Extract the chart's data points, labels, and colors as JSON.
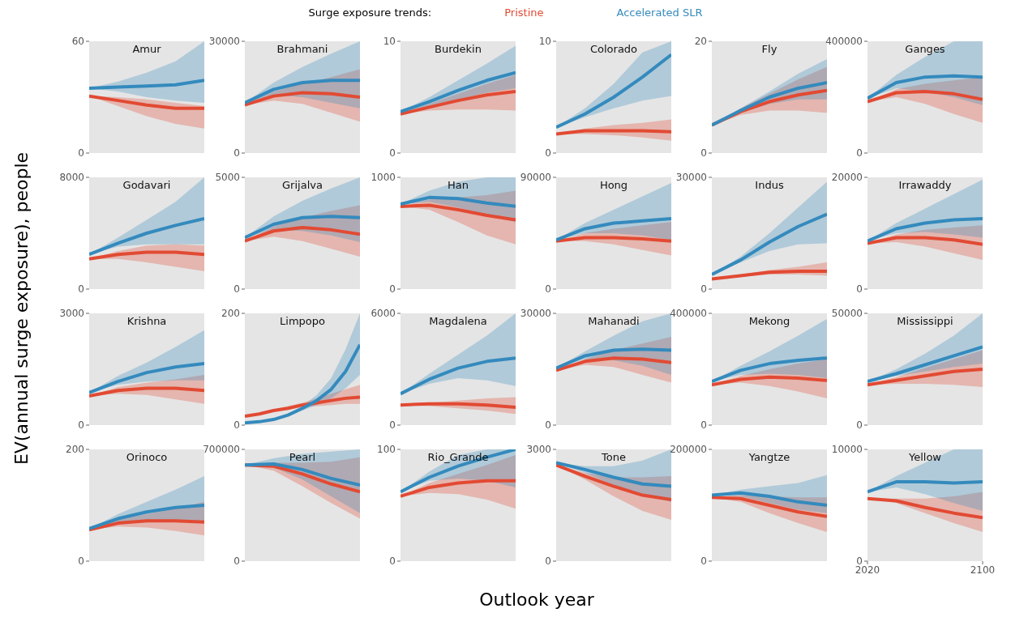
{
  "chart_data": [
    {
      "type": "line",
      "title": "Amur",
      "categories": [
        null,
        null,
        null,
        null,
        null
      ],
      "ylim": [
        0,
        60
      ],
      "yticks": [
        0,
        60
      ],
      "tick_labels": "y",
      "series": [
        {
          "color": "#e24a33",
          "values": [
            30.6,
            28.2,
            25.8,
            24,
            24
          ],
          "lower": [
            30.6,
            25.2,
            19.8,
            15.6,
            13.2
          ],
          "upper": [
            30.6,
            30,
            28.8,
            27,
            25.2
          ]
        },
        {
          "color": "#348abd",
          "values": [
            34.8,
            35.4,
            36,
            36.6,
            39
          ],
          "lower": [
            34.8,
            33,
            30,
            28.2,
            27
          ],
          "upper": [
            34.8,
            38.4,
            43.2,
            49.2,
            60
          ]
        }
      ]
    },
    {
      "type": "line",
      "title": "Brahmani",
      "categories": [
        null,
        null,
        null,
        null,
        null
      ],
      "ylim": [
        0,
        30000
      ],
      "yticks": [
        0,
        30000
      ],
      "tick_labels": "y",
      "series": [
        {
          "color": "#e24a33",
          "values": [
            12900,
            15300,
            16200,
            15900,
            15000
          ],
          "lower": [
            12900,
            14100,
            13200,
            10800,
            8400
          ],
          "upper": [
            12900,
            16500,
            18600,
            20400,
            22500
          ]
        },
        {
          "color": "#348abd",
          "values": [
            13500,
            17100,
            18900,
            19500,
            19500
          ],
          "lower": [
            13500,
            15600,
            15000,
            13500,
            12000
          ],
          "upper": [
            13500,
            18900,
            23100,
            26700,
            30000
          ]
        }
      ]
    },
    {
      "type": "line",
      "title": "Burdekin",
      "categories": [
        null,
        null,
        null,
        null,
        null
      ],
      "ylim": [
        0,
        10
      ],
      "yticks": [
        0,
        10
      ],
      "tick_labels": "y",
      "series": [
        {
          "color": "#e24a33",
          "values": [
            3.5,
            4.1,
            4.7,
            5.2,
            5.5
          ],
          "lower": [
            3.5,
            3.8,
            3.9,
            3.9,
            3.8
          ],
          "upper": [
            3.5,
            4.4,
            5.3,
            6.2,
            7.0
          ]
        },
        {
          "color": "#348abd",
          "values": [
            3.7,
            4.6,
            5.6,
            6.5,
            7.2
          ],
          "lower": [
            3.7,
            4.2,
            4.8,
            5.4,
            5.8
          ],
          "upper": [
            3.7,
            5.0,
            6.5,
            8.0,
            9.6
          ]
        }
      ]
    },
    {
      "type": "line",
      "title": "Colorado",
      "categories": [
        null,
        null,
        null,
        null,
        null
      ],
      "ylim": [
        0,
        10
      ],
      "yticks": [
        0,
        10
      ],
      "tick_labels": "y",
      "series": [
        {
          "color": "#e24a33",
          "values": [
            1.7,
            2.0,
            2.0,
            2.0,
            1.9
          ],
          "lower": [
            1.7,
            1.7,
            1.6,
            1.4,
            1.1
          ],
          "upper": [
            1.7,
            2.2,
            2.5,
            2.7,
            3.0
          ]
        },
        {
          "color": "#348abd",
          "values": [
            2.3,
            3.5,
            5.0,
            6.8,
            8.8
          ],
          "lower": [
            2.3,
            3.2,
            4.0,
            4.7,
            5.1
          ],
          "upper": [
            2.3,
            4.0,
            6.2,
            9.0,
            10
          ]
        }
      ]
    },
    {
      "type": "line",
      "title": "Fly",
      "categories": [
        null,
        null,
        null,
        null,
        null
      ],
      "ylim": [
        0,
        20
      ],
      "yticks": [
        0,
        20
      ],
      "tick_labels": "y",
      "series": [
        {
          "color": "#e24a33",
          "values": [
            5,
            7.4,
            9.2,
            10.4,
            11.2
          ],
          "lower": [
            5,
            6.8,
            7.6,
            7.6,
            7.2
          ],
          "upper": [
            5,
            8,
            10.6,
            13.2,
            15.4
          ]
        },
        {
          "color": "#348abd",
          "values": [
            5,
            7.6,
            10,
            11.6,
            12.6
          ],
          "lower": [
            5,
            7.2,
            8.8,
            9.6,
            9.6
          ],
          "upper": [
            5,
            8,
            11,
            14.2,
            16.8
          ]
        }
      ]
    },
    {
      "type": "line",
      "title": "Ganges",
      "x": [
        2020,
        2040,
        2060,
        2080,
        2100
      ],
      "xlim": [
        2020,
        2100
      ],
      "ylim": [
        0,
        400000
      ],
      "yticks": [
        0,
        400000
      ],
      "tick_labels": "y",
      "series": [
        {
          "color": "#e24a33",
          "values": [
            184000,
            216000,
            220000,
            212000,
            192000
          ],
          "lower": [
            184000,
            200000,
            176000,
            140000,
            108000
          ],
          "upper": [
            184000,
            228000,
            248000,
            260000,
            272000
          ]
        },
        {
          "color": "#348abd",
          "values": [
            196000,
            252000,
            272000,
            276000,
            272000
          ],
          "lower": [
            196000,
            232000,
            220000,
            200000,
            172000
          ],
          "upper": [
            196000,
            280000,
            344000,
            400000,
            400000
          ]
        }
      ]
    },
    {
      "type": "line",
      "title": "Godavari",
      "categories": [
        null,
        null,
        null,
        null,
        null
      ],
      "ylim": [
        0,
        8000
      ],
      "yticks": [
        0,
        8000
      ],
      "tick_labels": "y",
      "series": [
        {
          "color": "#e24a33",
          "values": [
            2160,
            2480,
            2640,
            2640,
            2480
          ],
          "lower": [
            2160,
            2160,
            1920,
            1600,
            1280
          ],
          "upper": [
            2160,
            2720,
            3120,
            3200,
            3120
          ]
        },
        {
          "color": "#348abd",
          "values": [
            2480,
            3280,
            4000,
            4560,
            5040
          ],
          "lower": [
            2480,
            3040,
            3200,
            3200,
            3200
          ],
          "upper": [
            2480,
            3680,
            4960,
            6240,
            8000
          ]
        }
      ]
    },
    {
      "type": "line",
      "title": "Grijalva",
      "categories": [
        null,
        null,
        null,
        null,
        null
      ],
      "ylim": [
        0,
        5000
      ],
      "yticks": [
        0,
        5000
      ],
      "tick_labels": "y",
      "series": [
        {
          "color": "#e24a33",
          "values": [
            2150,
            2600,
            2750,
            2650,
            2450
          ],
          "lower": [
            2150,
            2350,
            2150,
            1800,
            1450
          ],
          "upper": [
            2150,
            2800,
            3200,
            3500,
            3750
          ]
        },
        {
          "color": "#348abd",
          "values": [
            2300,
            2900,
            3200,
            3250,
            3200
          ],
          "lower": [
            2300,
            2650,
            2600,
            2400,
            2100
          ],
          "upper": [
            2300,
            3250,
            3950,
            4500,
            5000
          ]
        }
      ]
    },
    {
      "type": "line",
      "title": "Han",
      "categories": [
        null,
        null,
        null,
        null,
        null
      ],
      "ylim": [
        0,
        1000
      ],
      "yticks": [
        0,
        1000
      ],
      "tick_labels": "y",
      "series": [
        {
          "color": "#e24a33",
          "values": [
            740,
            750,
            710,
            660,
            620
          ],
          "lower": [
            740,
            710,
            600,
            480,
            400
          ],
          "upper": [
            740,
            800,
            820,
            840,
            880
          ]
        },
        {
          "color": "#348abd",
          "values": [
            760,
            820,
            810,
            770,
            740
          ],
          "lower": [
            760,
            780,
            730,
            660,
            600
          ],
          "upper": [
            760,
            880,
            960,
            1000,
            1000
          ]
        }
      ]
    },
    {
      "type": "line",
      "title": "Hong",
      "categories": [
        null,
        null,
        null,
        null,
        null
      ],
      "ylim": [
        0,
        90000
      ],
      "yticks": [
        0,
        90000
      ],
      "tick_labels": "y",
      "series": [
        {
          "color": "#e24a33",
          "values": [
            38700,
            41400,
            41400,
            40500,
            38700
          ],
          "lower": [
            38700,
            38700,
            36000,
            31500,
            27000
          ],
          "upper": [
            38700,
            45000,
            48600,
            51300,
            54000
          ]
        },
        {
          "color": "#348abd",
          "values": [
            39600,
            48600,
            53100,
            54900,
            56700
          ],
          "lower": [
            39600,
            45000,
            45000,
            43200,
            39600
          ],
          "upper": [
            39600,
            53100,
            63900,
            74700,
            85500
          ]
        }
      ]
    },
    {
      "type": "line",
      "title": "Indus",
      "categories": [
        null,
        null,
        null,
        null,
        null
      ],
      "ylim": [
        0,
        30000
      ],
      "yticks": [
        0,
        30000
      ],
      "tick_labels": "y",
      "series": [
        {
          "color": "#e24a33",
          "values": [
            2700,
            3600,
            4500,
            4800,
            4800
          ],
          "lower": [
            2700,
            3300,
            3900,
            3900,
            3600
          ],
          "upper": [
            2700,
            3900,
            5100,
            6000,
            7200
          ]
        },
        {
          "color": "#348abd",
          "values": [
            3900,
            7800,
            12600,
            16800,
            20100
          ],
          "lower": [
            3900,
            7200,
            10200,
            12000,
            12300
          ],
          "upper": [
            3900,
            8700,
            15000,
            21900,
            28800
          ]
        }
      ]
    },
    {
      "type": "line",
      "title": "Irrawaddy",
      "x": [
        2020,
        2040,
        2060,
        2080,
        2100
      ],
      "xlim": [
        2020,
        2100
      ],
      "ylim": [
        0,
        20000
      ],
      "yticks": [
        0,
        20000
      ],
      "tick_labels": "y",
      "series": [
        {
          "color": "#e24a33",
          "values": [
            8200,
            9200,
            9200,
            8800,
            8000
          ],
          "lower": [
            8200,
            8400,
            7600,
            6400,
            5200
          ],
          "upper": [
            8200,
            9800,
            10600,
            11000,
            11400
          ]
        },
        {
          "color": "#348abd",
          "values": [
            8600,
            10800,
            11800,
            12400,
            12600
          ],
          "lower": [
            8600,
            10000,
            10200,
            9800,
            9200
          ],
          "upper": [
            8600,
            11800,
            14400,
            17000,
            19600
          ]
        }
      ]
    },
    {
      "type": "line",
      "title": "Krishna",
      "categories": [
        null,
        null,
        null,
        null,
        null
      ],
      "ylim": [
        0,
        3000
      ],
      "yticks": [
        0,
        3000
      ],
      "tick_labels": "y",
      "series": [
        {
          "color": "#e24a33",
          "values": [
            780,
            930,
            990,
            990,
            930
          ],
          "lower": [
            780,
            840,
            810,
            690,
            570
          ],
          "upper": [
            780,
            1020,
            1140,
            1230,
            1350
          ]
        },
        {
          "color": "#348abd",
          "values": [
            870,
            1170,
            1410,
            1560,
            1650
          ],
          "lower": [
            870,
            1080,
            1170,
            1200,
            1200
          ],
          "upper": [
            870,
            1320,
            1680,
            2100,
            2550
          ]
        }
      ]
    },
    {
      "type": "line",
      "title": "Limpopo",
      "categories": [
        null,
        null,
        null,
        null,
        null,
        null,
        null,
        null,
        null
      ],
      "ylim": [
        0,
        200
      ],
      "yticks": [
        0,
        200
      ],
      "tick_labels": "y",
      "series": [
        {
          "color": "#e24a33",
          "values": [
            16,
            20,
            26,
            30,
            36,
            40,
            44,
            48,
            50
          ],
          "lower": [
            16,
            20,
            24,
            28,
            32,
            34,
            36,
            38,
            38
          ],
          "upper": [
            16,
            22,
            28,
            34,
            40,
            48,
            56,
            64,
            72
          ]
        },
        {
          "color": "#348abd",
          "values": [
            4,
            6,
            10,
            18,
            30,
            44,
            64,
            96,
            144
          ],
          "lower": [
            4,
            6,
            8,
            16,
            26,
            36,
            48,
            66,
            90
          ],
          "upper": [
            4,
            6,
            12,
            20,
            34,
            54,
            84,
            136,
            200
          ]
        }
      ]
    },
    {
      "type": "line",
      "title": "Magdalena",
      "categories": [
        null,
        null,
        null,
        null,
        null
      ],
      "ylim": [
        0,
        6000
      ],
      "yticks": [
        0,
        6000
      ],
      "tick_labels": "y",
      "series": [
        {
          "color": "#e24a33",
          "values": [
            1080,
            1140,
            1140,
            1080,
            960
          ],
          "lower": [
            1080,
            1020,
            900,
            780,
            600
          ],
          "upper": [
            1080,
            1200,
            1320,
            1440,
            1500
          ]
        },
        {
          "color": "#348abd",
          "values": [
            1680,
            2460,
            3060,
            3420,
            3600
          ],
          "lower": [
            1680,
            2220,
            2520,
            2400,
            2100
          ],
          "upper": [
            1680,
            2760,
            3780,
            4800,
            6000
          ]
        }
      ]
    },
    {
      "type": "line",
      "title": "Mahanadi",
      "categories": [
        null,
        null,
        null,
        null,
        null
      ],
      "ylim": [
        0,
        30000
      ],
      "yticks": [
        0,
        30000
      ],
      "tick_labels": "y",
      "series": [
        {
          "color": "#e24a33",
          "values": [
            14700,
            17100,
            18000,
            17700,
            16800
          ],
          "lower": [
            14700,
            16200,
            15600,
            13500,
            11400
          ],
          "upper": [
            14700,
            17700,
            20100,
            21900,
            23700
          ]
        },
        {
          "color": "#348abd",
          "values": [
            15300,
            18600,
            20100,
            20400,
            20100
          ],
          "lower": [
            15300,
            17700,
            17400,
            15900,
            13500
          ],
          "upper": [
            15300,
            19800,
            24000,
            27900,
            30000
          ]
        }
      ]
    },
    {
      "type": "line",
      "title": "Mekong",
      "categories": [
        null,
        null,
        null,
        null,
        null
      ],
      "ylim": [
        0,
        400000
      ],
      "yticks": [
        0,
        400000
      ],
      "tick_labels": "y",
      "series": [
        {
          "color": "#e24a33",
          "values": [
            144000,
            164000,
            172000,
            168000,
            160000
          ],
          "lower": [
            144000,
            152000,
            140000,
            120000,
            96000
          ],
          "upper": [
            144000,
            176000,
            200000,
            220000,
            236000
          ]
        },
        {
          "color": "#348abd",
          "values": [
            156000,
            196000,
            220000,
            232000,
            240000
          ],
          "lower": [
            156000,
            180000,
            184000,
            180000,
            168000
          ],
          "upper": [
            156000,
            212000,
            264000,
            320000,
            380000
          ]
        }
      ]
    },
    {
      "type": "line",
      "title": "Mississippi",
      "x": [
        2020,
        2040,
        2060,
        2080,
        2100
      ],
      "xlim": [
        2020,
        2100
      ],
      "ylim": [
        0,
        50000
      ],
      "yticks": [
        0,
        50000
      ],
      "tick_labels": "y",
      "series": [
        {
          "color": "#e24a33",
          "values": [
            18000,
            20000,
            22000,
            24000,
            25000
          ],
          "lower": [
            18000,
            18500,
            18500,
            18000,
            17000
          ],
          "upper": [
            18000,
            21500,
            25500,
            29500,
            33500
          ]
        },
        {
          "color": "#348abd",
          "values": [
            19500,
            23000,
            27000,
            31000,
            35000
          ],
          "lower": [
            19500,
            22000,
            24000,
            26000,
            27500
          ],
          "upper": [
            19500,
            25000,
            32000,
            40000,
            50000
          ]
        }
      ]
    },
    {
      "type": "line",
      "title": "Orinoco",
      "categories": [
        null,
        null,
        null,
        null,
        null
      ],
      "ylim": [
        0,
        200
      ],
      "yticks": [
        0,
        200
      ],
      "tick_labels": "y",
      "series": [
        {
          "color": "#e24a33",
          "values": [
            56,
            68,
            72,
            72,
            70
          ],
          "lower": [
            56,
            62,
            60,
            54,
            46
          ],
          "upper": [
            56,
            74,
            84,
            94,
            106
          ]
        },
        {
          "color": "#348abd",
          "values": [
            58,
            76,
            88,
            96,
            100
          ],
          "lower": [
            58,
            70,
            74,
            74,
            72
          ],
          "upper": [
            58,
            84,
            106,
            128,
            152
          ]
        }
      ]
    },
    {
      "type": "line",
      "title": "Pearl",
      "categories": [
        null,
        null,
        null,
        null,
        null
      ],
      "ylim": [
        0,
        700000
      ],
      "yticks": [
        0,
        700000
      ],
      "tick_labels": "y",
      "series": [
        {
          "color": "#e24a33",
          "values": [
            602000,
            595000,
            546000,
            483000,
            434000
          ],
          "lower": [
            602000,
            567000,
            469000,
            364000,
            266000
          ],
          "upper": [
            602000,
            616000,
            616000,
            623000,
            651000
          ]
        },
        {
          "color": "#348abd",
          "values": [
            602000,
            609000,
            574000,
            518000,
            476000
          ],
          "lower": [
            602000,
            588000,
            511000,
            406000,
            301000
          ],
          "upper": [
            602000,
            644000,
            672000,
            686000,
            700000
          ]
        }
      ]
    },
    {
      "type": "line",
      "title": "Rio_Grande",
      "categories": [
        null,
        null,
        null,
        null,
        null
      ],
      "ylim": [
        0,
        100
      ],
      "yticks": [
        0,
        100
      ],
      "tick_labels": "y",
      "series": [
        {
          "color": "#e24a33",
          "values": [
            58,
            66,
            70,
            72,
            72
          ],
          "lower": [
            58,
            61,
            60,
            55,
            47
          ],
          "upper": [
            58,
            70,
            78,
            86,
            95
          ]
        },
        {
          "color": "#348abd",
          "values": [
            62,
            75,
            85,
            93,
            100
          ],
          "lower": [
            62,
            72,
            74,
            72,
            66
          ],
          "upper": [
            62,
            80,
            95,
            100,
            100
          ]
        }
      ]
    },
    {
      "type": "line",
      "title": "Tone",
      "categories": [
        null,
        null,
        null,
        null,
        null
      ],
      "ylim": [
        0,
        3000
      ],
      "yticks": [
        0,
        3000
      ],
      "tick_labels": "y",
      "series": [
        {
          "color": "#e24a33",
          "values": [
            2580,
            2280,
            2010,
            1770,
            1650
          ],
          "lower": [
            2580,
            2190,
            1740,
            1350,
            1110
          ],
          "upper": [
            2580,
            2370,
            2250,
            2250,
            2280
          ]
        },
        {
          "color": "#348abd",
          "values": [
            2640,
            2460,
            2250,
            2070,
            2010
          ],
          "lower": [
            2640,
            2370,
            2040,
            1770,
            1590
          ],
          "upper": [
            2640,
            2550,
            2550,
            2700,
            3000
          ]
        }
      ]
    },
    {
      "type": "line",
      "title": "Yangtze",
      "categories": [
        null,
        null,
        null,
        null,
        null
      ],
      "ylim": [
        0,
        200000
      ],
      "yticks": [
        0,
        200000
      ],
      "tick_labels": "y",
      "series": [
        {
          "color": "#e24a33",
          "values": [
            114000,
            112000,
            100000,
            88000,
            80000
          ],
          "lower": [
            114000,
            106000,
            86000,
            68000,
            52000
          ],
          "upper": [
            114000,
            118000,
            116000,
            114000,
            114000
          ]
        },
        {
          "color": "#348abd",
          "values": [
            118000,
            122000,
            116000,
            106000,
            100000
          ],
          "lower": [
            118000,
            116000,
            104000,
            92000,
            86000
          ],
          "upper": [
            118000,
            128000,
            134000,
            140000,
            154000
          ]
        }
      ]
    },
    {
      "type": "line",
      "title": "Yellow",
      "x": [
        2020,
        2040,
        2060,
        2080,
        2100
      ],
      "xlim": [
        2020,
        2100
      ],
      "xticks": [
        2020,
        2100
      ],
      "ylim": [
        0,
        10000
      ],
      "yticks": [
        0,
        10000
      ],
      "series": [
        {
          "color": "#e24a33",
          "values": [
            5600,
            5400,
            4800,
            4300,
            3900
          ],
          "lower": [
            5600,
            5200,
            4300,
            3400,
            2600
          ],
          "upper": [
            5600,
            5600,
            5600,
            5800,
            6200
          ]
        },
        {
          "color": "#348abd",
          "values": [
            6200,
            7100,
            7100,
            7000,
            7100
          ],
          "lower": [
            6200,
            6600,
            6000,
            5200,
            4500
          ],
          "upper": [
            6200,
            7600,
            8800,
            10000,
            10000
          ]
        }
      ]
    },
    {
      "type": "other",
      "legend_title": "Surge exposure trends:",
      "xlabel": "Outlook year",
      "ylabel": "EV(annual surge exposure), people",
      "series": [
        {
          "name": "Pristine",
          "color": "#e24a33"
        },
        {
          "name": "Accelerated SLR",
          "color": "#348abd"
        }
      ]
    }
  ]
}
